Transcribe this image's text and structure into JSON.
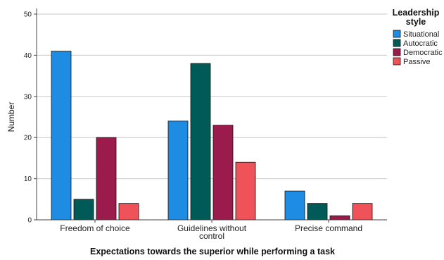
{
  "chart_data": {
    "type": "bar",
    "categories": [
      "Freedom of choice",
      "Guidelines without control",
      "Precise command"
    ],
    "category_lines": [
      [
        "Freedom of choice"
      ],
      [
        "Guidelines without",
        "control"
      ],
      [
        "Precise command"
      ]
    ],
    "series": [
      {
        "name": "Situational",
        "color": "#1f8ce4",
        "values": [
          41,
          24,
          7
        ]
      },
      {
        "name": "Autocratic",
        "color": "#005a57",
        "values": [
          5,
          38,
          4
        ]
      },
      {
        "name": "Democratic",
        "color": "#9b1b4c",
        "values": [
          20,
          23,
          1
        ]
      },
      {
        "name": "Passive",
        "color": "#f0525a",
        "values": [
          4,
          14,
          4
        ]
      }
    ],
    "xlabel": "Expectations towards the superior while performing a task",
    "ylabel": "Number",
    "ylim": [
      0,
      50
    ],
    "yticks": [
      0,
      10,
      20,
      30,
      40,
      50
    ],
    "grid": true,
    "legend_title": [
      "Leadership",
      "style"
    ],
    "legend_position": "top-right"
  }
}
